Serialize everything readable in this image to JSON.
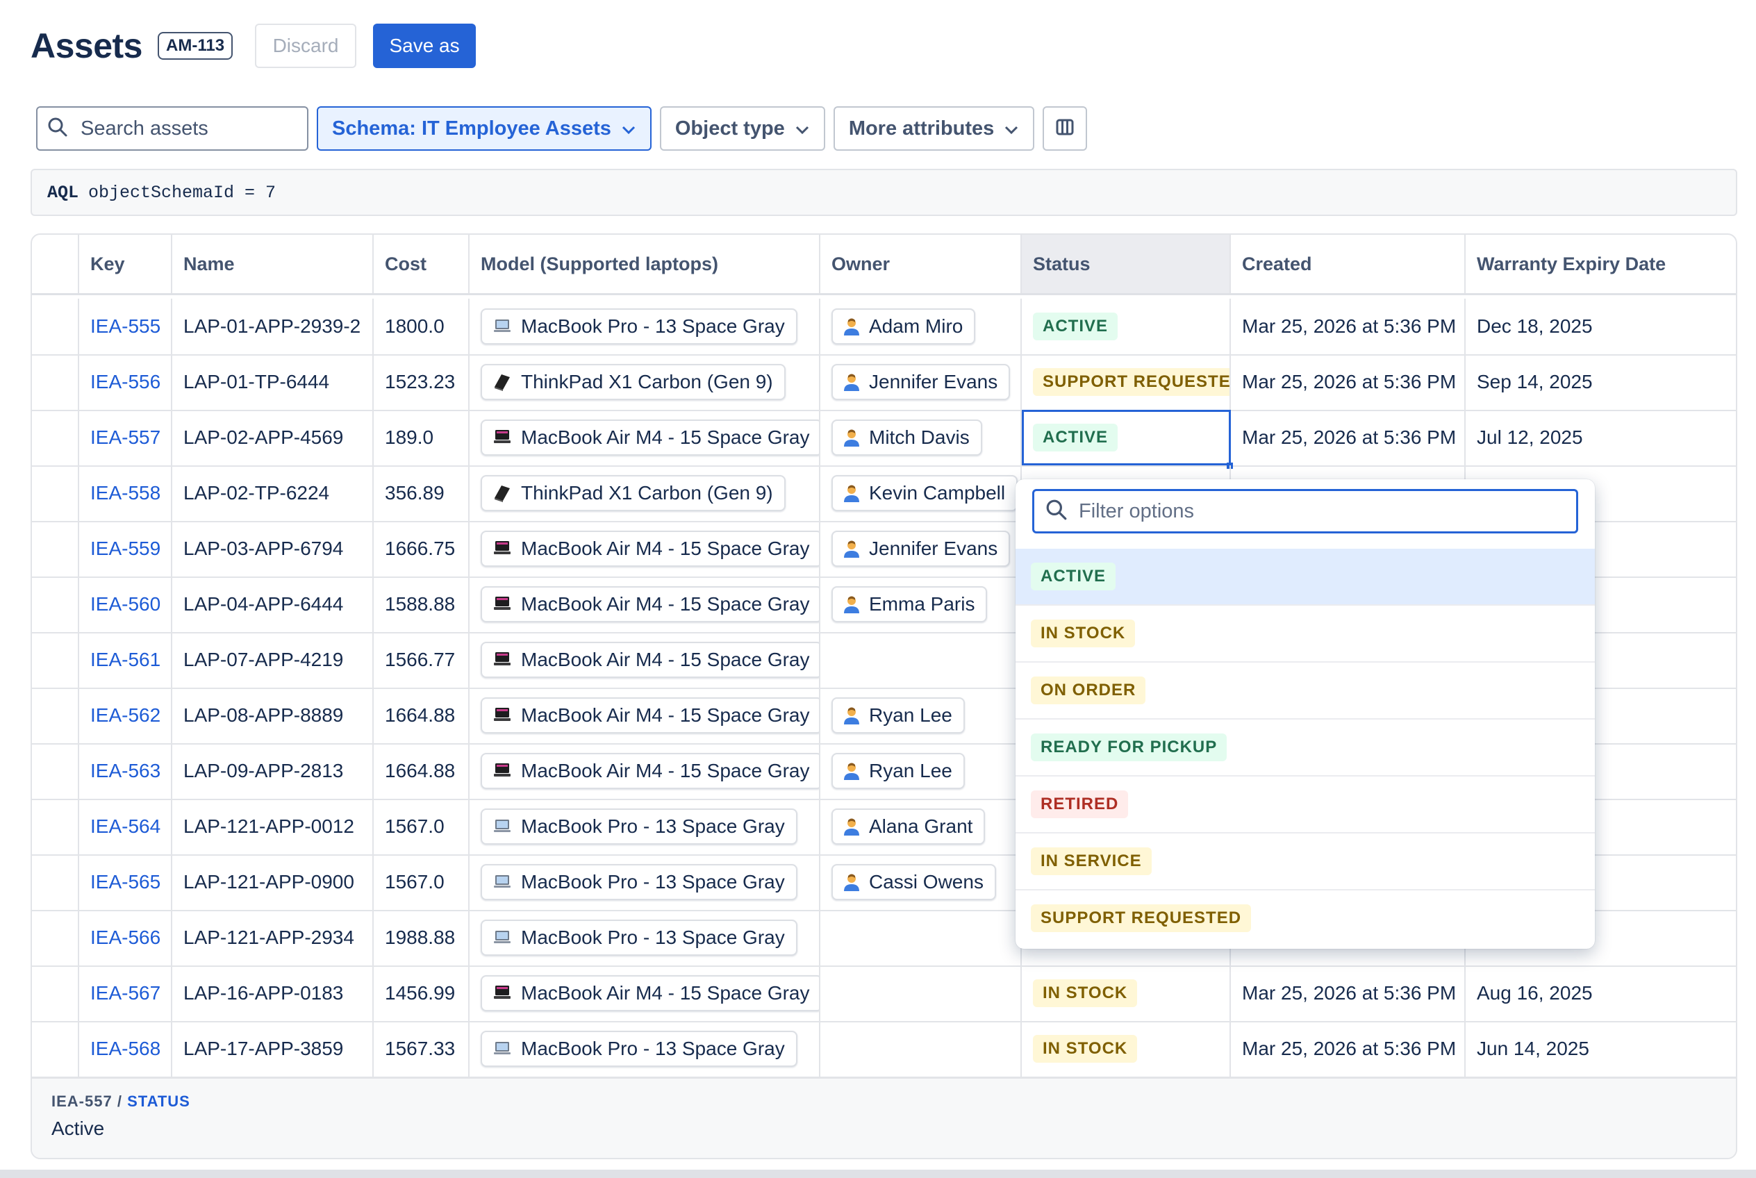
{
  "header": {
    "title": "Assets",
    "key_badge": "AM-113",
    "discard_label": "Discard",
    "save_label": "Save as"
  },
  "toolbar": {
    "search_placeholder": "Search assets",
    "schema_label": "Schema: IT Employee Assets",
    "object_type_label": "Object type",
    "more_attributes_label": "More attributes"
  },
  "aql": {
    "keyword": "AQL",
    "query": "objectSchemaId = 7"
  },
  "columns": [
    "Key",
    "Name",
    "Cost",
    "Model (Supported laptops)",
    "Owner",
    "Status",
    "Created",
    "Warranty Expiry Date"
  ],
  "rows": [
    {
      "key": "IEA-555",
      "name": "LAP-01-APP-2939-2",
      "cost": "1800.0",
      "model": "MacBook Pro - 13 Space Gray",
      "model_icon": "macbook-pro-icon",
      "owner": "Adam Miro",
      "status": "ACTIVE",
      "status_color": "green",
      "created": "Mar 25, 2026 at 5:36 PM",
      "warranty": "Dec 18, 2025"
    },
    {
      "key": "IEA-556",
      "name": "LAP-01-TP-6444",
      "cost": "1523.23",
      "model": "ThinkPad X1 Carbon (Gen 9)",
      "model_icon": "thinkpad-icon",
      "owner": "Jennifer Evans",
      "status": "SUPPORT REQUESTED",
      "status_color": "yellow",
      "created": "Mar 25, 2026 at 5:36 PM",
      "warranty": "Sep 14, 2025"
    },
    {
      "key": "IEA-557",
      "name": "LAP-02-APP-4569",
      "cost": "189.0",
      "model": "MacBook Air M4 - 15 Space Gray",
      "model_icon": "macbook-air-icon",
      "owner": "Mitch Davis",
      "status": "ACTIVE",
      "status_color": "green",
      "created": "Mar 25, 2026 at 5:36 PM",
      "warranty": "Jul 12, 2025"
    },
    {
      "key": "IEA-558",
      "name": "LAP-02-TP-6224",
      "cost": "356.89",
      "model": "ThinkPad X1 Carbon (Gen 9)",
      "model_icon": "thinkpad-icon",
      "owner": "Kevin Campbell",
      "status": "",
      "status_color": "",
      "created": "",
      "warranty": ""
    },
    {
      "key": "IEA-559",
      "name": "LAP-03-APP-6794",
      "cost": "1666.75",
      "model": "MacBook Air M4 - 15 Space Gray",
      "model_icon": "macbook-air-icon",
      "owner": "Jennifer Evans",
      "status": "",
      "status_color": "",
      "created": "",
      "warranty": ""
    },
    {
      "key": "IEA-560",
      "name": "LAP-04-APP-6444",
      "cost": "1588.88",
      "model": "MacBook Air M4 - 15 Space Gray",
      "model_icon": "macbook-air-icon",
      "owner": "Emma Paris",
      "status": "",
      "status_color": "",
      "created": "",
      "warranty": ""
    },
    {
      "key": "IEA-561",
      "name": "LAP-07-APP-4219",
      "cost": "1566.77",
      "model": "MacBook Air M4 - 15 Space Gray",
      "model_icon": "macbook-air-icon",
      "owner": "",
      "status": "",
      "status_color": "",
      "created": "",
      "warranty": ""
    },
    {
      "key": "IEA-562",
      "name": "LAP-08-APP-8889",
      "cost": "1664.88",
      "model": "MacBook Air M4 - 15 Space Gray",
      "model_icon": "macbook-air-icon",
      "owner": "Ryan Lee",
      "status": "",
      "status_color": "",
      "created": "",
      "warranty": ""
    },
    {
      "key": "IEA-563",
      "name": "LAP-09-APP-2813",
      "cost": "1664.88",
      "model": "MacBook Air M4 - 15 Space Gray",
      "model_icon": "macbook-air-icon",
      "owner": "Ryan Lee",
      "status": "",
      "status_color": "",
      "created": "",
      "warranty": ""
    },
    {
      "key": "IEA-564",
      "name": "LAP-121-APP-0012",
      "cost": "1567.0",
      "model": "MacBook Pro - 13 Space Gray",
      "model_icon": "macbook-pro-icon",
      "owner": "Alana Grant",
      "status": "",
      "status_color": "",
      "created": "",
      "warranty": ""
    },
    {
      "key": "IEA-565",
      "name": "LAP-121-APP-0900",
      "cost": "1567.0",
      "model": "MacBook Pro - 13 Space Gray",
      "model_icon": "macbook-pro-icon",
      "owner": "Cassi Owens",
      "status": "",
      "status_color": "",
      "created": "",
      "warranty": ""
    },
    {
      "key": "IEA-566",
      "name": "LAP-121-APP-2934",
      "cost": "1988.88",
      "model": "MacBook Pro - 13 Space Gray",
      "model_icon": "macbook-pro-icon",
      "owner": "",
      "status": "",
      "status_color": "",
      "created": "",
      "warranty": ""
    },
    {
      "key": "IEA-567",
      "name": "LAP-16-APP-0183",
      "cost": "1456.99",
      "model": "MacBook Air M4 - 15 Space Gray",
      "model_icon": "macbook-air-icon",
      "owner": "",
      "status": "IN STOCK",
      "status_color": "yellow",
      "created": "Mar 25, 2026 at 5:36 PM",
      "warranty": "Aug 16, 2025"
    },
    {
      "key": "IEA-568",
      "name": "LAP-17-APP-3859",
      "cost": "1567.33",
      "model": "MacBook Pro - 13 Space Gray",
      "model_icon": "macbook-pro-icon",
      "owner": "",
      "status": "IN STOCK",
      "status_color": "yellow",
      "created": "Mar 25, 2026 at 5:36 PM",
      "warranty": "Jun 14, 2025"
    }
  ],
  "selected_row_key": "IEA-557",
  "dropdown": {
    "filter_placeholder": "Filter options",
    "options": [
      {
        "label": "ACTIVE",
        "color": "green",
        "highlighted": true
      },
      {
        "label": "IN STOCK",
        "color": "yellow",
        "highlighted": false
      },
      {
        "label": "ON ORDER",
        "color": "yellow",
        "highlighted": false
      },
      {
        "label": "READY FOR PICKUP",
        "color": "green",
        "highlighted": false
      },
      {
        "label": "RETIRED",
        "color": "red",
        "highlighted": false
      },
      {
        "label": "IN SERVICE",
        "color": "yellow",
        "highlighted": false
      },
      {
        "label": "SUPPORT REQUESTED",
        "color": "yellow",
        "highlighted": false
      }
    ]
  },
  "footer": {
    "record_key": "IEA-557",
    "separator": "/",
    "field": "STATUS",
    "value": "Active"
  },
  "colors": {
    "accent": "#2563d6",
    "link": "#1d5bd6",
    "text": "#172b4d",
    "green_bg": "#e3fcef",
    "yellow_bg": "#fff7d6",
    "red_bg": "#ffeceb"
  }
}
